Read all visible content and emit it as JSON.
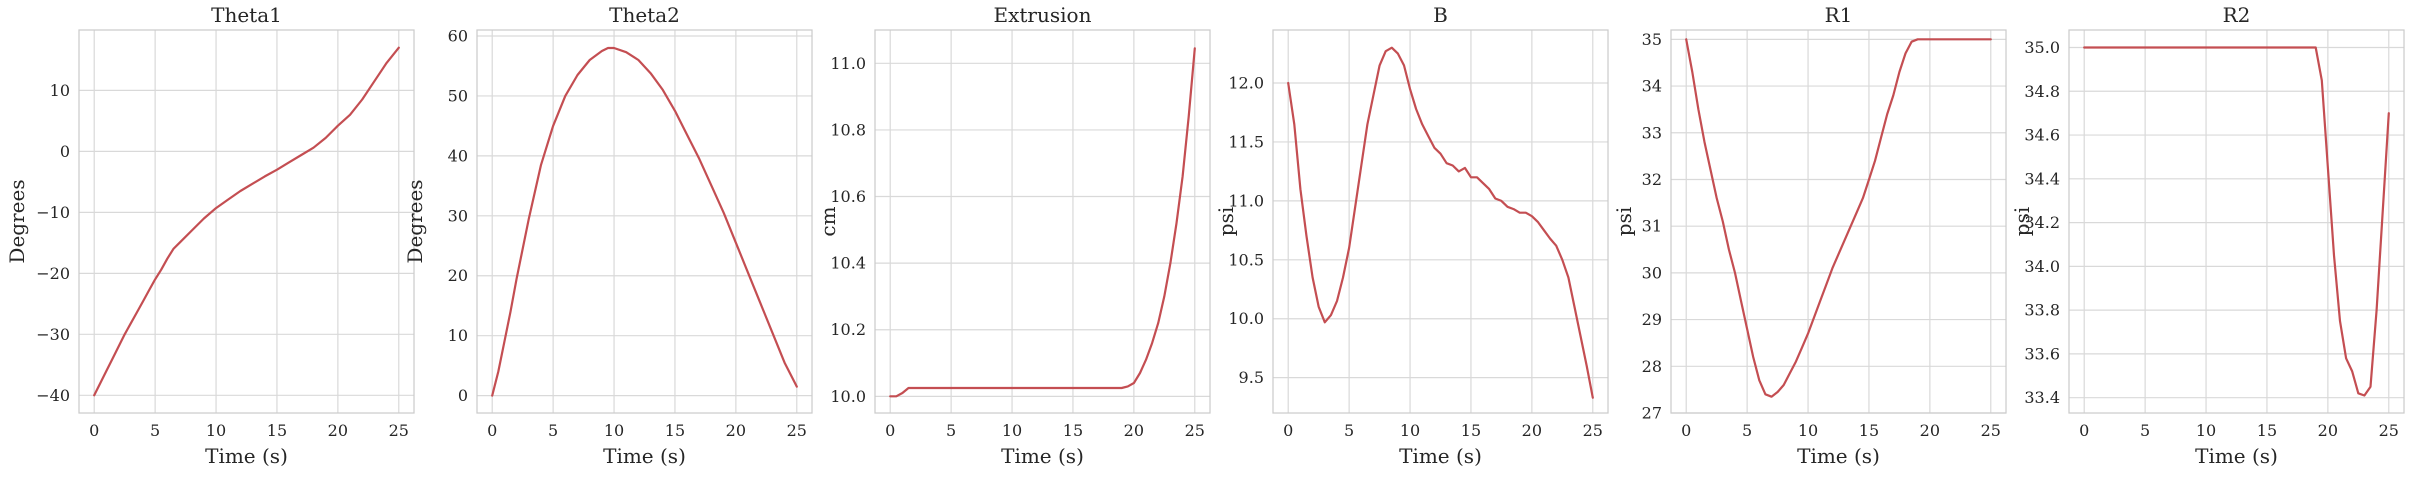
{
  "chart_data": [
    {
      "type": "line",
      "title": "Theta1",
      "xlabel": "Time (s)",
      "ylabel": "Degrees",
      "xlim": [
        -1.25,
        26.25
      ],
      "ylim": [
        -42.9,
        19.9
      ],
      "xticks": [
        0,
        5,
        10,
        15,
        20,
        25
      ],
      "yticks": [
        -40,
        -30,
        -20,
        -10,
        0,
        10
      ],
      "grid": true,
      "color": "#c44e52",
      "series": [
        {
          "x": [
            0,
            0.5,
            1,
            1.5,
            2,
            2.5,
            3,
            3.5,
            4,
            4.5,
            5,
            5.5,
            6,
            6.5,
            7,
            8,
            9,
            10,
            11,
            12,
            13,
            14,
            15,
            16,
            17,
            18,
            19,
            20,
            21,
            22,
            23,
            24,
            25
          ],
          "y": [
            -40,
            -38,
            -36,
            -34,
            -32,
            -30,
            -28.2,
            -26.4,
            -24.6,
            -22.8,
            -21,
            -19.4,
            -17.6,
            -16,
            -15,
            -13,
            -11,
            -9.3,
            -7.9,
            -6.5,
            -5.3,
            -4.1,
            -3,
            -1.8,
            -0.6,
            0.6,
            2.2,
            4.2,
            6,
            8.5,
            11.5,
            14.5,
            17
          ]
        }
      ]
    },
    {
      "type": "line",
      "title": "Theta2",
      "xlabel": "Time (s)",
      "ylabel": "Degrees",
      "xlim": [
        -1.25,
        26.25
      ],
      "ylim": [
        -2.9,
        61
      ],
      "xticks": [
        0,
        5,
        10,
        15,
        20,
        25
      ],
      "yticks": [
        0,
        10,
        20,
        30,
        40,
        50,
        60
      ],
      "grid": true,
      "color": "#c44e52",
      "series": [
        {
          "x": [
            0,
            0.5,
            1,
            1.5,
            2,
            3,
            4,
            5,
            6,
            7,
            8,
            9,
            9.5,
            10,
            11,
            12,
            13,
            14,
            15,
            16,
            17,
            18,
            19,
            20,
            21,
            22,
            23,
            24,
            25
          ],
          "y": [
            0,
            4,
            9,
            14,
            19.5,
            29.5,
            38.5,
            45,
            50,
            53.5,
            56,
            57.5,
            58,
            58,
            57.3,
            56,
            53.8,
            51,
            47.5,
            43.5,
            39.5,
            35,
            30.5,
            25.5,
            20.5,
            15.5,
            10.5,
            5.5,
            1.5
          ]
        }
      ]
    },
    {
      "type": "line",
      "title": "Extrusion",
      "xlabel": "Time (s)",
      "ylabel": "cm",
      "xlim": [
        -1.25,
        26.25
      ],
      "ylim": [
        9.95,
        11.1
      ],
      "xticks": [
        0,
        5,
        10,
        15,
        20,
        25
      ],
      "yticks": [
        10.0,
        10.2,
        10.4,
        10.6,
        10.8,
        11.0
      ],
      "grid": true,
      "color": "#c44e52",
      "series": [
        {
          "x": [
            0,
            0.5,
            1,
            1.5,
            2,
            5,
            10,
            15,
            18,
            19,
            19.5,
            20,
            20.5,
            21,
            21.5,
            22,
            22.5,
            23,
            23.5,
            24,
            24.5,
            25
          ],
          "y": [
            10.0,
            10.0,
            10.01,
            10.025,
            10.025,
            10.025,
            10.025,
            10.025,
            10.025,
            10.025,
            10.03,
            10.04,
            10.07,
            10.11,
            10.16,
            10.22,
            10.3,
            10.4,
            10.52,
            10.66,
            10.84,
            11.045
          ]
        }
      ]
    },
    {
      "type": "line",
      "title": "B",
      "xlabel": "Time (s)",
      "ylabel": "psi",
      "xlim": [
        -1.25,
        26.25
      ],
      "ylim": [
        9.2,
        12.45
      ],
      "xticks": [
        0,
        5,
        10,
        15,
        20,
        25
      ],
      "yticks": [
        9.5,
        10.0,
        10.5,
        11.0,
        11.5,
        12.0
      ],
      "grid": true,
      "color": "#c44e52",
      "series": [
        {
          "x": [
            0,
            0.5,
            1,
            1.5,
            2,
            2.5,
            3,
            3.5,
            4,
            4.5,
            5,
            5.5,
            6,
            6.5,
            7,
            7.5,
            8,
            8.5,
            9,
            9.5,
            10,
            10.5,
            11,
            11.5,
            12,
            12.5,
            13,
            13.5,
            14,
            14.5,
            15,
            15.5,
            16,
            16.5,
            17,
            17.5,
            18,
            18.5,
            19,
            19.5,
            20,
            20.5,
            21,
            21.5,
            22,
            22.5,
            23,
            23.5,
            24,
            24.5,
            25
          ],
          "y": [
            12.0,
            11.65,
            11.1,
            10.7,
            10.35,
            10.1,
            9.97,
            10.03,
            10.15,
            10.35,
            10.6,
            10.95,
            11.3,
            11.65,
            11.9,
            12.15,
            12.27,
            12.3,
            12.25,
            12.15,
            11.95,
            11.78,
            11.65,
            11.55,
            11.45,
            11.4,
            11.32,
            11.3,
            11.25,
            11.28,
            11.2,
            11.2,
            11.15,
            11.1,
            11.02,
            11.0,
            10.95,
            10.93,
            10.9,
            10.9,
            10.87,
            10.82,
            10.75,
            10.68,
            10.62,
            10.5,
            10.35,
            10.1,
            9.85,
            9.6,
            9.33
          ]
        }
      ]
    },
    {
      "type": "line",
      "title": "R1",
      "xlabel": "Time (s)",
      "ylabel": "psi",
      "xlim": [
        -1.25,
        26.25
      ],
      "ylim": [
        27,
        35.2
      ],
      "xticks": [
        0,
        5,
        10,
        15,
        20,
        25
      ],
      "yticks": [
        27,
        28,
        29,
        30,
        31,
        32,
        33,
        34,
        35
      ],
      "grid": true,
      "color": "#c44e52",
      "series": [
        {
          "x": [
            0,
            0.5,
            1,
            1.5,
            2,
            2.5,
            3,
            3.5,
            4,
            4.5,
            5,
            5.5,
            6,
            6.5,
            7,
            7.5,
            8,
            8.5,
            9,
            9.5,
            10,
            10.5,
            11,
            11.5,
            12,
            12.5,
            13,
            13.5,
            14,
            14.5,
            15,
            15.5,
            16,
            16.5,
            17,
            17.5,
            18,
            18.5,
            19,
            19.5,
            20,
            21,
            22,
            23,
            24,
            25
          ],
          "y": [
            35,
            34.3,
            33.5,
            32.8,
            32.2,
            31.6,
            31.1,
            30.5,
            30,
            29.4,
            28.8,
            28.2,
            27.7,
            27.4,
            27.35,
            27.45,
            27.6,
            27.85,
            28.1,
            28.4,
            28.7,
            29.05,
            29.4,
            29.75,
            30.1,
            30.4,
            30.7,
            31.0,
            31.3,
            31.6,
            32.0,
            32.4,
            32.9,
            33.4,
            33.8,
            34.3,
            34.7,
            34.95,
            35,
            35,
            35,
            35,
            35,
            35,
            35,
            35
          ]
        }
      ]
    },
    {
      "type": "line",
      "title": "R2",
      "xlabel": "Time (s)",
      "ylabel": "psi",
      "xlim": [
        -1.25,
        26.25
      ],
      "ylim": [
        33.33,
        35.08
      ],
      "xticks": [
        0,
        5,
        10,
        15,
        20,
        25
      ],
      "yticks": [
        33.4,
        33.6,
        33.8,
        34.0,
        34.2,
        34.4,
        34.6,
        34.8,
        35.0
      ],
      "grid": true,
      "color": "#c44e52",
      "series": [
        {
          "x": [
            0,
            5,
            10,
            15,
            18.5,
            19,
            19.5,
            20,
            20.5,
            21,
            21.5,
            22,
            22.5,
            23,
            23.5,
            24,
            24.5,
            25
          ],
          "y": [
            35,
            35,
            35,
            35,
            35,
            35,
            34.85,
            34.45,
            34.05,
            33.75,
            33.58,
            33.52,
            33.42,
            33.41,
            33.45,
            33.8,
            34.25,
            34.7
          ]
        }
      ]
    }
  ]
}
